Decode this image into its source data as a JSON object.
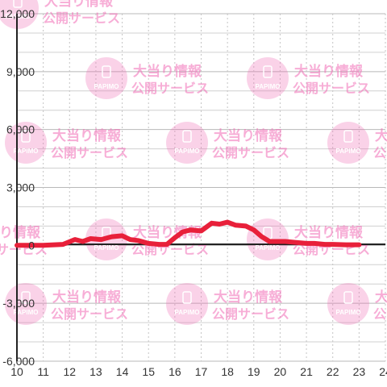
{
  "chart_data": {
    "type": "line",
    "xlim": [
      10,
      24
    ],
    "ylim": [
      -6000,
      12000
    ],
    "y_ticks": [
      -6000,
      -3000,
      0,
      3000,
      6000,
      9000,
      12000
    ],
    "y_tick_labels": [
      "-6,000",
      "-3,000",
      "0",
      "3,000",
      "6,000",
      "9,000",
      "12,000"
    ],
    "x_ticks": [
      10,
      11,
      12,
      13,
      14,
      15,
      16,
      17,
      18,
      19,
      20,
      21,
      22,
      23,
      24
    ],
    "x_tick_labels": [
      "10",
      "11",
      "12",
      "13",
      "14",
      "15",
      "16",
      "17",
      "18",
      "19",
      "20",
      "21",
      "22",
      "23",
      "24"
    ],
    "grid": true,
    "series": [
      {
        "color": "#e8203a",
        "x": [
          10,
          11,
          11.75,
          12.2,
          12.5,
          12.8,
          13.2,
          13.6,
          14.0,
          14.3,
          14.6,
          15.0,
          15.4,
          15.7,
          16.0,
          16.3,
          16.6,
          17.0,
          17.4,
          17.7,
          18.0,
          18.3,
          18.7,
          19.0,
          19.3,
          19.6,
          19.9,
          20.2,
          20.6,
          21.0,
          21.3,
          21.7,
          22.0,
          22.5,
          23.0
        ],
        "y": [
          0,
          0,
          50,
          300,
          200,
          350,
          300,
          450,
          500,
          300,
          250,
          100,
          50,
          50,
          400,
          700,
          800,
          750,
          1150,
          1100,
          1200,
          1050,
          1000,
          800,
          450,
          200,
          200,
          200,
          150,
          100,
          100,
          50,
          50,
          30,
          30
        ]
      }
    ]
  },
  "watermark": {
    "line1": "大当り情報",
    "line2": "公開サービス",
    "logo_text": "PAPIMO",
    "color": "#f06ab4"
  }
}
